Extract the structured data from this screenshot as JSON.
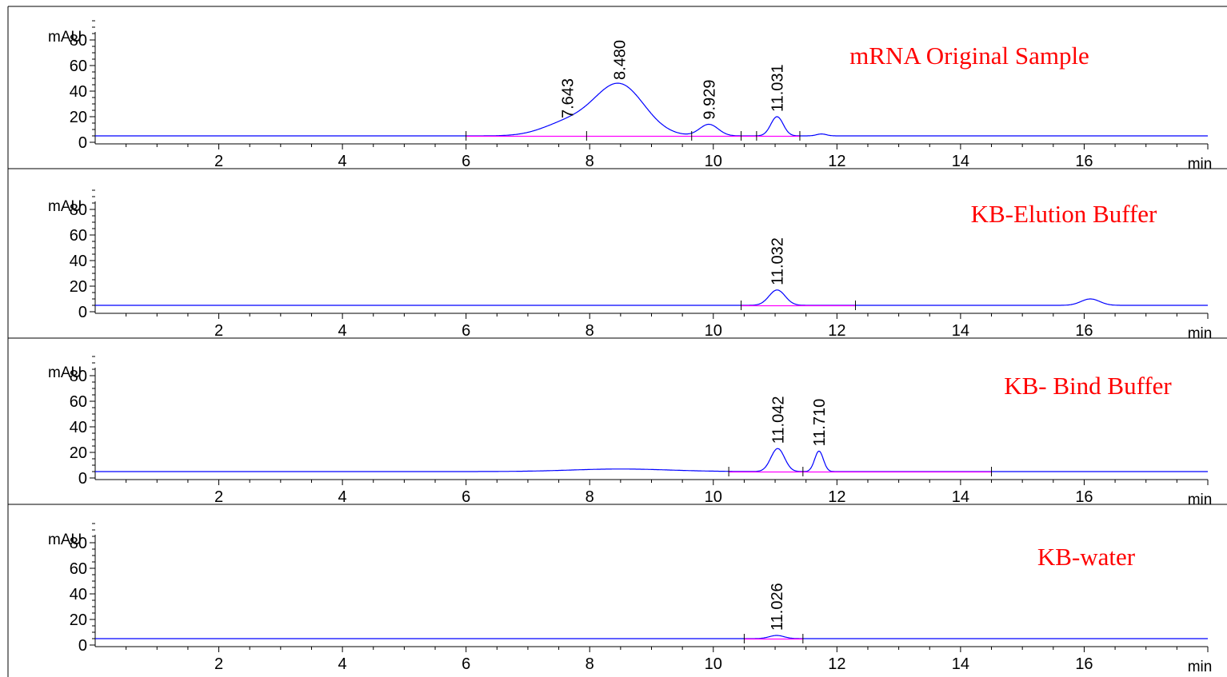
{
  "colors": {
    "signal": "#0000ff",
    "baseline": "#ff00ff",
    "axis": "#000000",
    "title": "#ff0000"
  },
  "chart_data": [
    {
      "type": "line",
      "title": "mRNA Original Sample",
      "ylabel": "mAU",
      "xlabel": "min",
      "xlim": [
        0,
        18
      ],
      "ylim": [
        0,
        100
      ],
      "yticks": [
        0,
        20,
        40,
        60,
        80
      ],
      "xticks": [
        2,
        4,
        6,
        8,
        10,
        12,
        14,
        16
      ],
      "grid": false,
      "baseline_level": 5,
      "peaks": [
        {
          "label": "7.643",
          "x": 7.643,
          "height": 10,
          "width": 0.4
        },
        {
          "label": "8.480",
          "x": 8.48,
          "height": 40,
          "width": 0.4
        },
        {
          "label": "9.929",
          "x": 9.929,
          "height": 9,
          "width": 0.15
        },
        {
          "label": "11.031",
          "x": 11.031,
          "height": 15,
          "width": 0.1
        }
      ],
      "minor_peaks": [
        {
          "x": 11.75,
          "height": 1.5,
          "width": 0.08
        }
      ],
      "baseline_segments": [
        [
          6.0,
          11.4
        ]
      ],
      "integration_marks": [
        6.0,
        7.95,
        9.65,
        10.45,
        10.7,
        11.4
      ]
    },
    {
      "type": "line",
      "title": "KB-Elution Buffer",
      "ylabel": "mAU",
      "xlabel": "min",
      "xlim": [
        0,
        18
      ],
      "ylim": [
        0,
        100
      ],
      "yticks": [
        0,
        20,
        40,
        60,
        80
      ],
      "xticks": [
        2,
        4,
        6,
        8,
        10,
        12,
        14,
        16
      ],
      "grid": false,
      "baseline_level": 5,
      "peaks": [
        {
          "label": "11.032",
          "x": 11.032,
          "height": 12,
          "width": 0.13
        }
      ],
      "minor_peaks": [
        {
          "x": 16.1,
          "height": 5,
          "width": 0.15
        }
      ],
      "baseline_segments": [
        [
          10.45,
          12.3
        ]
      ],
      "integration_marks": [
        10.45,
        12.3
      ]
    },
    {
      "type": "line",
      "title": "KB- Bind Buffer",
      "ylabel": "mAU",
      "xlabel": "min",
      "xlim": [
        0,
        18
      ],
      "ylim": [
        0,
        100
      ],
      "yticks": [
        0,
        20,
        40,
        60,
        80
      ],
      "xticks": [
        2,
        4,
        6,
        8,
        10,
        12,
        14,
        16
      ],
      "grid": false,
      "baseline_level": 5,
      "peaks": [
        {
          "label": "11.042",
          "x": 11.042,
          "height": 18,
          "width": 0.11
        },
        {
          "label": "11.710",
          "x": 11.71,
          "height": 16,
          "width": 0.07
        }
      ],
      "minor_peaks": [
        {
          "x": 8.5,
          "height": 2,
          "width": 0.8
        }
      ],
      "baseline_segments": [
        [
          10.25,
          14.5
        ]
      ],
      "integration_marks": [
        10.25,
        11.45,
        14.5
      ]
    },
    {
      "type": "line",
      "title": "KB-water",
      "ylabel": "mAU",
      "xlabel": "min",
      "xlim": [
        0,
        18
      ],
      "ylim": [
        0,
        100
      ],
      "yticks": [
        0,
        20,
        40,
        60,
        80
      ],
      "xticks": [
        2,
        4,
        6,
        8,
        10,
        12,
        14,
        16
      ],
      "grid": false,
      "baseline_level": 5,
      "peaks": [
        {
          "label": "11.026",
          "x": 11.026,
          "height": 2.5,
          "width": 0.12
        }
      ],
      "minor_peaks": [],
      "baseline_segments": [
        [
          10.5,
          11.45
        ]
      ],
      "integration_marks": [
        10.5,
        11.45
      ]
    }
  ]
}
